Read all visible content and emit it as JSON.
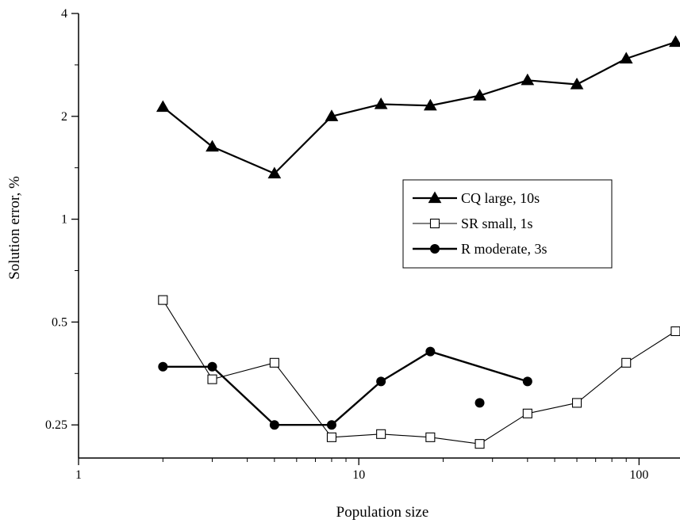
{
  "chart_data": {
    "type": "line",
    "title": "",
    "xlabel": "Population size",
    "ylabel": "Solution error, %",
    "xscale": "log",
    "yscale": "log",
    "xlim": [
      1,
      140
    ],
    "ylim": [
      0.2,
      4
    ],
    "xticks": [
      1,
      10,
      100
    ],
    "xtick_labels": [
      "1",
      "10",
      "100"
    ],
    "yticks": [
      0.25,
      0.5,
      1,
      2,
      4
    ],
    "ytick_labels": [
      "0.25",
      "0.5",
      "1",
      "2",
      "4"
    ],
    "grid": false,
    "legend_position": "center-right",
    "series": [
      {
        "name": "CQ large, 10s",
        "marker": "filled-triangle",
        "x": [
          2,
          3,
          5,
          8,
          12,
          18,
          27,
          40,
          60,
          90,
          135
        ],
        "y": [
          2.13,
          1.63,
          1.36,
          2.0,
          2.17,
          2.15,
          2.3,
          2.55,
          2.48,
          2.95,
          3.3
        ]
      },
      {
        "name": "SR small, 1s",
        "marker": "open-square",
        "x": [
          2,
          3,
          5,
          8,
          12,
          18,
          27,
          40,
          60,
          90,
          135
        ],
        "y": [
          0.58,
          0.34,
          0.38,
          0.23,
          0.235,
          0.23,
          0.22,
          0.27,
          0.29,
          0.38,
          0.47
        ]
      },
      {
        "name": "R moderate, 3s",
        "marker": "filled-circle",
        "x": [
          2,
          3,
          5,
          8,
          12,
          18,
          40
        ],
        "y": [
          0.37,
          0.37,
          0.25,
          0.25,
          0.335,
          0.41,
          0.335
        ]
      },
      {
        "name": "",
        "marker": "filled-circle",
        "x": [
          27
        ],
        "y": [
          0.29
        ]
      }
    ]
  }
}
